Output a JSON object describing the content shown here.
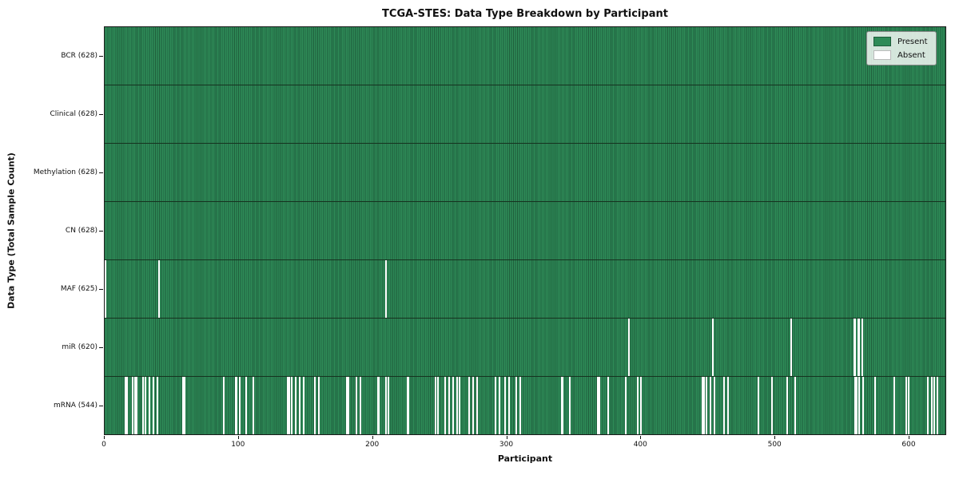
{
  "chart_data": {
    "type": "heatmap",
    "title": "TCGA-STES: Data Type Breakdown by Participant",
    "xlabel": "Participant",
    "ylabel": "Data Type (Total Sample Count)",
    "legend": [
      "Present",
      "Absent"
    ],
    "legend_position": "upper right",
    "grid": false,
    "n_participants": 628,
    "x_ticks": [
      0,
      100,
      200,
      300,
      400,
      500,
      600
    ],
    "x_range": [
      0,
      628
    ],
    "colors": {
      "present": "#2e8b57",
      "present_edge": "#1f5e3c",
      "absent": "#ffffff"
    },
    "rows": [
      {
        "name": "BCR",
        "label": "BCR (628)",
        "total": 628,
        "absent_participants": []
      },
      {
        "name": "Clinical",
        "label": "Clinical (628)",
        "total": 628,
        "absent_participants": []
      },
      {
        "name": "Methylation",
        "label": "Methylation (628)",
        "total": 628,
        "absent_participants": []
      },
      {
        "name": "CN",
        "label": "CN (628)",
        "total": 628,
        "absent_participants": []
      },
      {
        "name": "MAF",
        "label": "MAF (625)",
        "total": 625,
        "absent_participants": [
          0,
          40,
          209
        ]
      },
      {
        "name": "miR",
        "label": "miR (620)",
        "total": 620,
        "absent_participants": [
          390,
          453,
          511,
          558,
          559,
          561,
          562,
          564
        ]
      },
      {
        "name": "mRNA",
        "label": "mRNA (544)",
        "total": 544,
        "absent_participants": [
          15,
          16,
          20,
          22,
          23,
          28,
          30,
          33,
          36,
          39,
          58,
          59,
          88,
          97,
          98,
          100,
          105,
          110,
          136,
          137,
          139,
          142,
          145,
          148,
          156,
          159,
          180,
          181,
          187,
          190,
          203,
          204,
          209,
          211,
          225,
          226,
          246,
          248,
          253,
          256,
          259,
          262,
          264,
          271,
          274,
          277,
          291,
          294,
          298,
          301,
          306,
          309,
          340,
          341,
          346,
          367,
          368,
          375,
          388,
          397,
          399,
          445,
          446,
          448,
          451,
          454,
          461,
          464,
          487,
          497,
          508,
          514,
          559,
          560,
          562,
          565,
          574,
          588,
          597,
          599,
          613,
          616,
          618,
          620
        ]
      }
    ]
  }
}
